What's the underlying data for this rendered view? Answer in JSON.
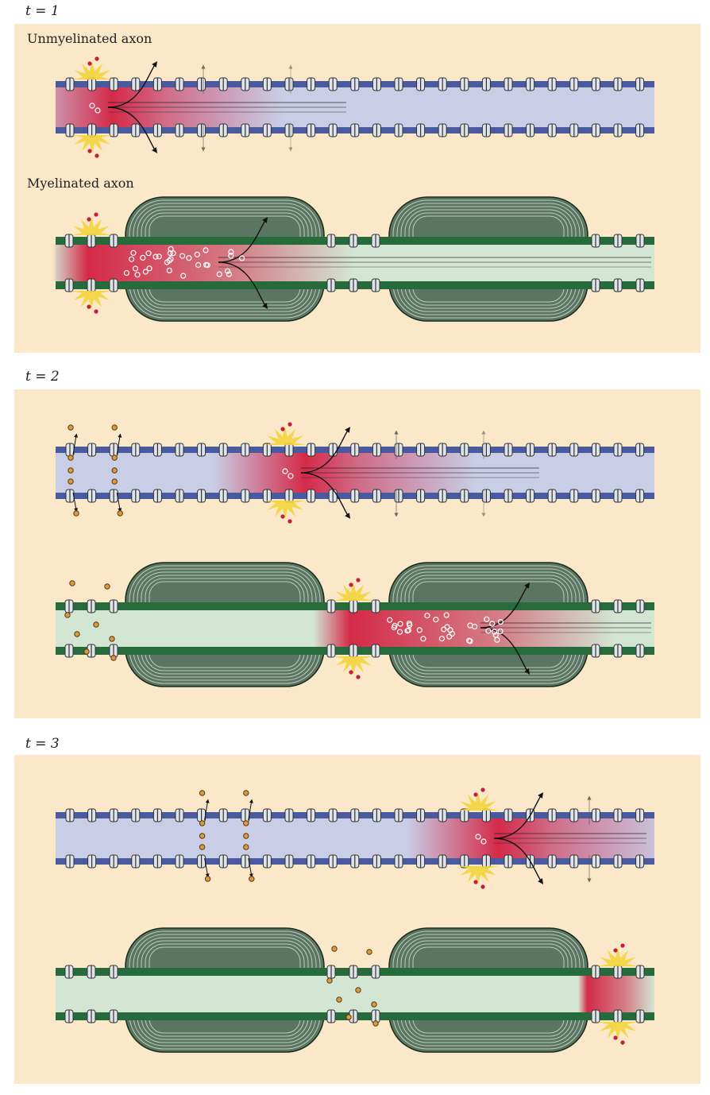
{
  "colors": {
    "background": "#ffffff",
    "panel": "#fbe8c8",
    "unmyelinated_membrane": "#4a5a9e",
    "unmyelinated_axoplasm": "#c9cde6",
    "myelinated_membrane": "#276b3c",
    "myelinated_axoplasm": "#d3e6d3",
    "myelin_sheath": "#5a7561",
    "depolarized_region": "#d42a48",
    "action_potential_flash": "#f2d43c",
    "sodium_ion": "#c41f3a",
    "potassium_ion": "#d99a40",
    "channel": "#dfe4ea"
  },
  "panels": [
    {
      "time_label": "t = 1",
      "axons": [
        {
          "kind": "unmyelinated",
          "caption": "Unmyelinated axon",
          "ap_node": 0,
          "current_spread_nodes": 5,
          "recovering_nodes": []
        },
        {
          "kind": "myelinated",
          "caption": "Myelinated axon",
          "ap_node": 0,
          "current_spread_nodes": 2,
          "recovering_nodes": []
        }
      ]
    },
    {
      "time_label": "t = 2",
      "axons": [
        {
          "kind": "unmyelinated",
          "caption": "",
          "ap_node": 3,
          "current_spread_nodes": 5,
          "recovering_nodes": [
            0,
            1
          ]
        },
        {
          "kind": "myelinated",
          "caption": "",
          "ap_node": 1,
          "current_spread_nodes": 1,
          "recovering_nodes": [
            0
          ]
        }
      ]
    },
    {
      "time_label": "t = 3",
      "axons": [
        {
          "kind": "unmyelinated",
          "caption": "",
          "ap_node": 6,
          "current_spread_nodes": 5,
          "recovering_nodes": [
            3,
            4
          ]
        },
        {
          "kind": "myelinated",
          "caption": "",
          "ap_node": 2,
          "current_spread_nodes": 0,
          "recovering_nodes": [
            1
          ]
        }
      ]
    }
  ]
}
